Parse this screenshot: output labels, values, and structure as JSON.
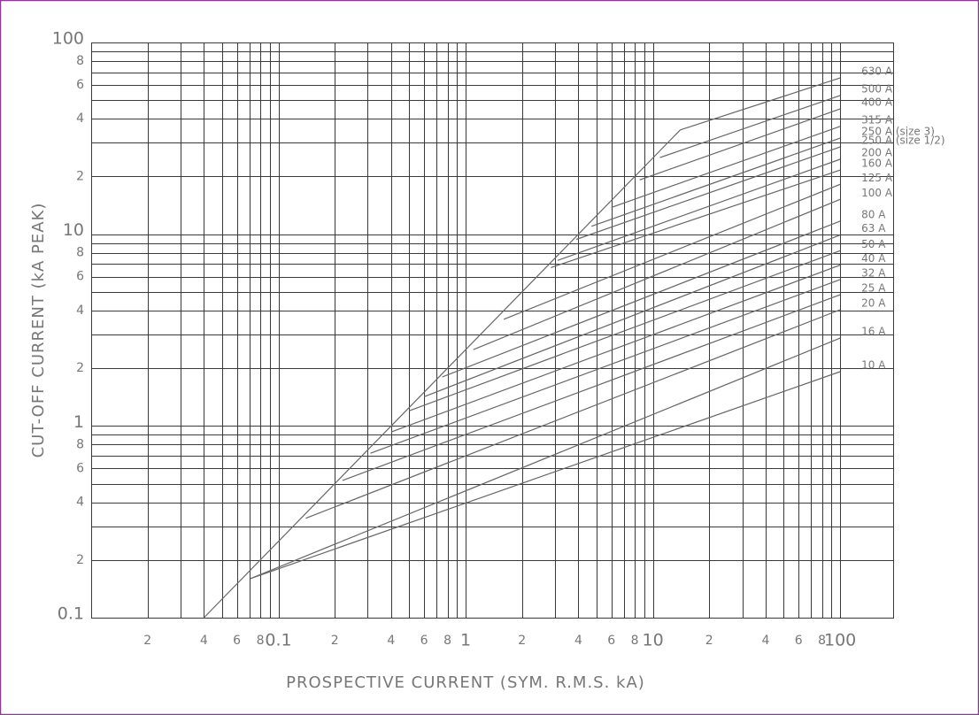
{
  "chart_data": {
    "type": "line",
    "x_label": "PROSPECTIVE CURRENT (SYM. R.M.S. kA)",
    "y_label": "CUT-OFF CURRENT (kA PEAK)",
    "xscale": "log",
    "yscale": "log",
    "xlim": [
      0.01,
      194
    ],
    "ylim": [
      0.1,
      100
    ],
    "xticks": [
      {
        "value": 0.02,
        "label": "2"
      },
      {
        "value": 0.04,
        "label": "4"
      },
      {
        "value": 0.06,
        "label": "6"
      },
      {
        "value": 0.08,
        "label": "8"
      },
      0.1,
      {
        "value": 0.2,
        "label": "2"
      },
      {
        "value": 0.4,
        "label": "4"
      },
      {
        "value": 0.6,
        "label": "6"
      },
      {
        "value": 0.8,
        "label": "8"
      },
      1,
      2,
      4,
      6,
      8,
      10,
      {
        "value": 20,
        "label": "2"
      },
      {
        "value": 40,
        "label": "4"
      },
      {
        "value": 60,
        "label": "6"
      },
      {
        "value": 80,
        "label": "8"
      },
      100
    ],
    "yticks": [
      100,
      {
        "value": 80,
        "label": "8"
      },
      {
        "value": 60,
        "label": "6"
      },
      {
        "value": 40,
        "label": "4"
      },
      {
        "value": 20,
        "label": "2"
      },
      10,
      8,
      6,
      4,
      2,
      1,
      {
        "value": 0.8,
        "label": "8"
      },
      {
        "value": 0.6,
        "label": "6"
      },
      {
        "value": 0.4,
        "label": "4"
      },
      {
        "value": 0.2,
        "label": "2"
      },
      0.1
    ],
    "xgrid": [
      0.01,
      0.02,
      0.03,
      0.04,
      0.05,
      0.06,
      0.07,
      0.08,
      0.09,
      0.1,
      0.2,
      0.3,
      0.4,
      0.5,
      0.6,
      0.7,
      0.8,
      0.9,
      1,
      2,
      3,
      4,
      5,
      6,
      7,
      8,
      9,
      10,
      20,
      30,
      40,
      50,
      60,
      70,
      80,
      90,
      100
    ],
    "ygrid": [
      0.1,
      0.2,
      0.3,
      0.4,
      0.5,
      0.6,
      0.7,
      0.8,
      0.9,
      1,
      2,
      3,
      4,
      5,
      6,
      7,
      8,
      9,
      10,
      20,
      30,
      40,
      50,
      60,
      70,
      80,
      90,
      100
    ],
    "grid": true,
    "color": "#666666",
    "envelope": {
      "x": [
        0.04,
        14
      ],
      "values": [
        0.1,
        35
      ]
    },
    "series": [
      {
        "name": "630 A",
        "x": [
          14,
          100
        ],
        "values": [
          35,
          65.3
        ]
      },
      {
        "name": "500 A",
        "x": [
          10.9,
          100
        ],
        "values": [
          25.1,
          52.9
        ]
      },
      {
        "name": "400 A",
        "x": [
          8.5,
          100
        ],
        "values": [
          19.2,
          45
        ]
      },
      {
        "name": "315 A",
        "x": [
          6.0,
          100
        ],
        "values": [
          13.8,
          36.5
        ]
      },
      {
        "name": "250 A (size 3)",
        "x": [
          4.7,
          100
        ],
        "values": [
          11.0,
          31.7
        ]
      },
      {
        "name": "250 A (size 1/2)",
        "x": [
          3.9,
          100
        ],
        "values": [
          9.4,
          28.5
        ]
      },
      {
        "name": "200 A",
        "x": [
          3.1,
          100
        ],
        "values": [
          7.3,
          24.6
        ]
      },
      {
        "name": "160 A",
        "x": [
          2.85,
          100
        ],
        "values": [
          6.7,
          21.6
        ]
      },
      {
        "name": "125 A",
        "x": [
          1.6,
          100
        ],
        "values": [
          3.6,
          18.2
        ]
      },
      {
        "name": "100 A",
        "x": [
          1.1,
          100
        ],
        "values": [
          2.5,
          15.2
        ]
      },
      {
        "name": "80 A",
        "x": [
          0.75,
          100
        ],
        "values": [
          1.8,
          11.7
        ]
      },
      {
        "name": "63 A",
        "x": [
          0.6,
          100
        ],
        "values": [
          1.42,
          9.9
        ]
      },
      {
        "name": "50 A",
        "x": [
          0.5,
          100
        ],
        "values": [
          1.2,
          8.2
        ]
      },
      {
        "name": "40 A",
        "x": [
          0.4,
          100
        ],
        "values": [
          0.93,
          6.9
        ]
      },
      {
        "name": "32 A",
        "x": [
          0.31,
          100
        ],
        "values": [
          0.72,
          5.8
        ]
      },
      {
        "name": "25 A",
        "x": [
          0.22,
          100
        ],
        "values": [
          0.52,
          4.83
        ]
      },
      {
        "name": "20 A",
        "x": [
          0.14,
          100
        ],
        "values": [
          0.33,
          4.04
        ]
      },
      {
        "name": "16 A",
        "x": [
          0.071,
          100
        ],
        "values": [
          0.16,
          2.87
        ]
      },
      {
        "name": "10 A",
        "x": [
          0.071,
          100
        ],
        "values": [
          0.16,
          1.92
        ]
      }
    ]
  }
}
